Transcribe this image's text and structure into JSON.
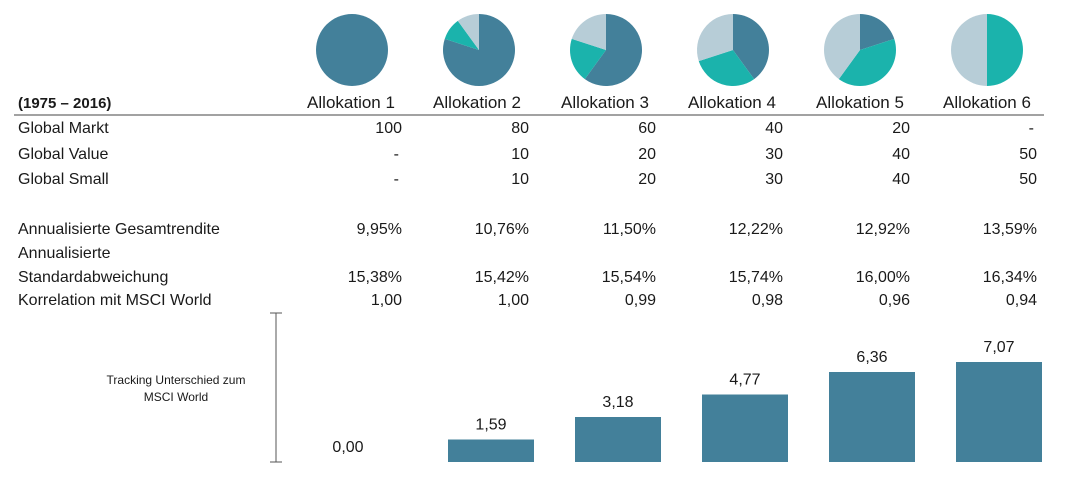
{
  "period_label": "(1975 – 2016)",
  "colors": {
    "global_markt": "#43809a",
    "global_value": "#1bb3ac",
    "global_small": "#b7cdd7",
    "bar": "#43809a",
    "rule": "#444444",
    "period": "#7f7f7f"
  },
  "chart_data": [
    {
      "type": "pie",
      "categories": [
        "Allokation 1",
        "Allokation 2",
        "Allokation 3",
        "Allokation 4",
        "Allokation 5",
        "Allokation 6"
      ],
      "series": [
        {
          "name": "Global Markt",
          "values": [
            100,
            80,
            60,
            40,
            20,
            0
          ]
        },
        {
          "name": "Global Value",
          "values": [
            0,
            10,
            20,
            30,
            40,
            50
          ]
        },
        {
          "name": "Global Small",
          "values": [
            0,
            10,
            20,
            30,
            40,
            50
          ]
        }
      ]
    },
    {
      "type": "table",
      "columns": [
        "Allokation 1",
        "Allokation 2",
        "Allokation 3",
        "Allokation 4",
        "Allokation 5",
        "Allokation 6"
      ],
      "rows": [
        {
          "label": "Global Markt",
          "cells": [
            "100",
            "80",
            "60",
            "40",
            "20",
            "-"
          ]
        },
        {
          "label": "Global Value",
          "cells": [
            "-",
            "10",
            "20",
            "30",
            "40",
            "50"
          ]
        },
        {
          "label": "Global Small",
          "cells": [
            "-",
            "10",
            "20",
            "30",
            "40",
            "50"
          ]
        },
        {
          "label": "Annualisierte Gesamtrendite",
          "cells": [
            "9,95%",
            "10,76%",
            "11,50%",
            "12,22%",
            "12,92%",
            "13,59%"
          ]
        },
        {
          "label_lines": [
            "Annualisierte",
            "Standardabweichung"
          ],
          "cells": [
            "15,38%",
            "15,42%",
            "15,54%",
            "15,74%",
            "16,00%",
            "16,34%"
          ]
        },
        {
          "label": "Korrelation mit MSCI World",
          "cells": [
            "1,00",
            "1,00",
            "0,99",
            "0,98",
            "0,96",
            "0,94"
          ]
        }
      ]
    },
    {
      "type": "bar",
      "label_lines": [
        "Tracking Unterschied zum",
        "MSCI World"
      ],
      "categories": [
        "Allokation 1",
        "Allokation 2",
        "Allokation 3",
        "Allokation 4",
        "Allokation 5",
        "Allokation 6"
      ],
      "values": [
        0.0,
        1.59,
        3.18,
        4.77,
        6.36,
        7.07
      ],
      "value_labels": [
        "0,00",
        "1,59",
        "3,18",
        "4,77",
        "6,36",
        "7,07"
      ]
    }
  ]
}
